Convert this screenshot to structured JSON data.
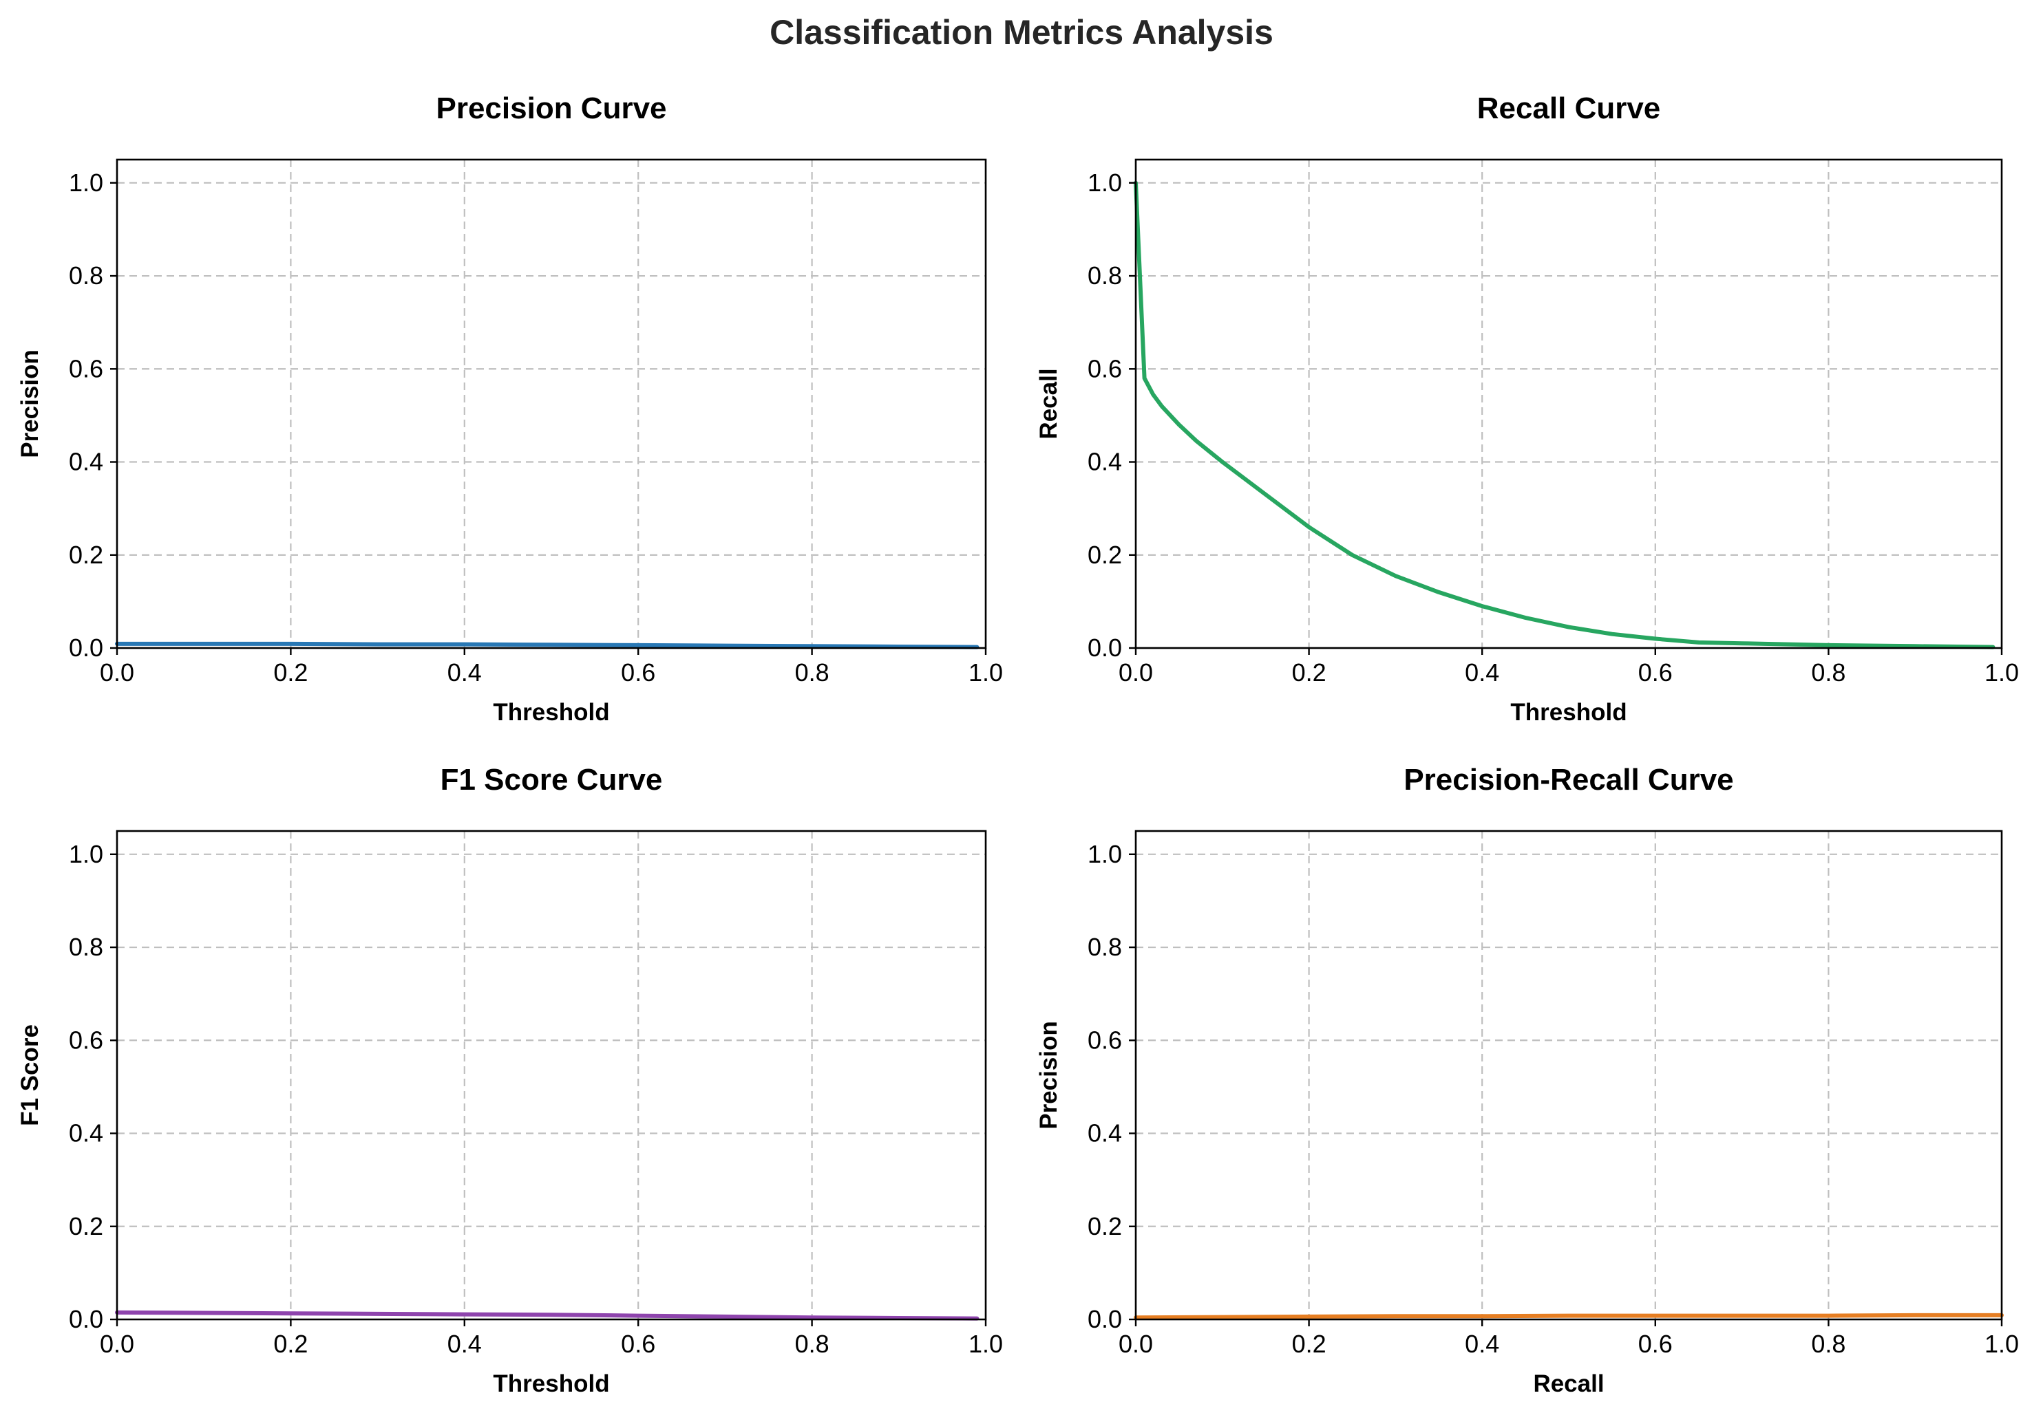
{
  "figure": {
    "title": "Classification Metrics Analysis"
  },
  "chart_data": [
    {
      "type": "line",
      "title": "Precision Curve",
      "xlabel": "Threshold",
      "ylabel": "Precision",
      "xlim": [
        0,
        1
      ],
      "ylim": [
        0,
        1.05
      ],
      "xticks": [
        "0.0",
        "0.2",
        "0.4",
        "0.6",
        "0.8",
        "1.0"
      ],
      "yticks": [
        "0.0",
        "0.2",
        "0.4",
        "0.6",
        "0.8",
        "1.0"
      ],
      "grid": true,
      "color": "#2878b5",
      "x": [
        0.0,
        0.1,
        0.2,
        0.3,
        0.4,
        0.5,
        0.6,
        0.7,
        0.8,
        0.9,
        0.99
      ],
      "y": [
        0.009,
        0.009,
        0.009,
        0.008,
        0.008,
        0.007,
        0.006,
        0.005,
        0.004,
        0.003,
        0.002
      ]
    },
    {
      "type": "line",
      "title": "Recall Curve",
      "xlabel": "Threshold",
      "ylabel": "Recall",
      "xlim": [
        0,
        1
      ],
      "ylim": [
        0,
        1.05
      ],
      "xticks": [
        "0.0",
        "0.2",
        "0.4",
        "0.6",
        "0.8",
        "1.0"
      ],
      "yticks": [
        "0.0",
        "0.2",
        "0.4",
        "0.6",
        "0.8",
        "1.0"
      ],
      "grid": true,
      "color": "#27a660",
      "x": [
        0.0,
        0.01,
        0.02,
        0.03,
        0.05,
        0.07,
        0.1,
        0.15,
        0.2,
        0.25,
        0.3,
        0.35,
        0.4,
        0.45,
        0.5,
        0.55,
        0.6,
        0.65,
        0.7,
        0.8,
        0.9,
        0.99
      ],
      "y": [
        1.0,
        0.58,
        0.545,
        0.52,
        0.48,
        0.445,
        0.4,
        0.33,
        0.26,
        0.2,
        0.155,
        0.12,
        0.09,
        0.065,
        0.045,
        0.03,
        0.02,
        0.012,
        0.01,
        0.006,
        0.004,
        0.002
      ]
    },
    {
      "type": "line",
      "title": "F1 Score Curve",
      "xlabel": "Threshold",
      "ylabel": "F1 Score",
      "xlim": [
        0,
        1
      ],
      "ylim": [
        0,
        1.05
      ],
      "xticks": [
        "0.0",
        "0.2",
        "0.4",
        "0.6",
        "0.8",
        "1.0"
      ],
      "yticks": [
        "0.0",
        "0.2",
        "0.4",
        "0.6",
        "0.8",
        "1.0"
      ],
      "grid": true,
      "color": "#8e44ad",
      "x": [
        0.0,
        0.1,
        0.2,
        0.3,
        0.4,
        0.5,
        0.6,
        0.7,
        0.8,
        0.9,
        0.99
      ],
      "y": [
        0.015,
        0.014,
        0.013,
        0.012,
        0.011,
        0.01,
        0.008,
        0.006,
        0.004,
        0.003,
        0.002
      ]
    },
    {
      "type": "line",
      "title": "Precision-Recall Curve",
      "xlabel": "Recall",
      "ylabel": "Precision",
      "xlim": [
        0,
        1
      ],
      "ylim": [
        0,
        1.05
      ],
      "xticks": [
        "0.0",
        "0.2",
        "0.4",
        "0.6",
        "0.8",
        "1.0"
      ],
      "yticks": [
        "0.0",
        "0.2",
        "0.4",
        "0.6",
        "0.8",
        "1.0"
      ],
      "grid": true,
      "color": "#e67e22",
      "x": [
        0.0,
        0.1,
        0.2,
        0.3,
        0.4,
        0.5,
        0.6,
        0.7,
        0.8,
        0.9,
        1.0
      ],
      "y": [
        0.004,
        0.005,
        0.006,
        0.007,
        0.007,
        0.008,
        0.008,
        0.008,
        0.008,
        0.009,
        0.009
      ]
    }
  ]
}
